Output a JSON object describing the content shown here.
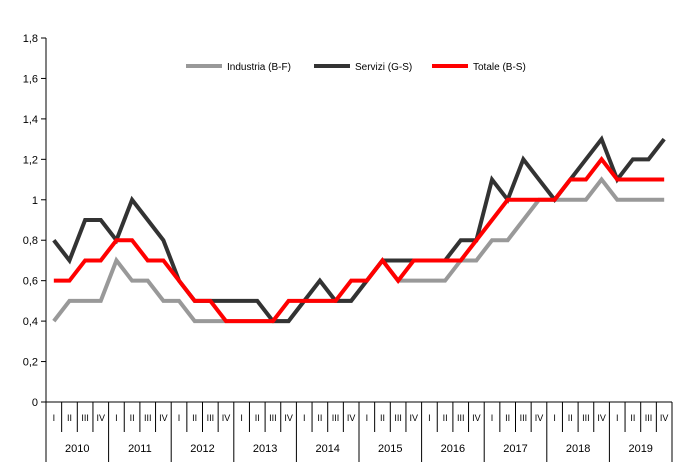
{
  "chart_data": {
    "type": "line",
    "title": "",
    "xlabel": "",
    "ylabel": "",
    "ylim": [
      0,
      1.8
    ],
    "yticks": [
      "0",
      "0,2",
      "0,4",
      "0,6",
      "0,8",
      "1",
      "1,2",
      "1,4",
      "1,6",
      "1,8"
    ],
    "ytick_values": [
      0,
      0.2,
      0.4,
      0.6,
      0.8,
      1.0,
      1.2,
      1.4,
      1.6,
      1.8
    ],
    "grid": false,
    "legend_position": "top-center",
    "quarter_labels": [
      "I",
      "II",
      "III",
      "IV"
    ],
    "years": [
      "2010",
      "2011",
      "2012",
      "2013",
      "2014",
      "2015",
      "2016",
      "2017",
      "2018",
      "2019"
    ],
    "series": [
      {
        "name": "Industria (B-F)",
        "color": "#999999",
        "values": [
          0.4,
          0.5,
          0.5,
          0.5,
          0.7,
          0.6,
          0.6,
          0.5,
          0.5,
          0.4,
          0.4,
          0.4,
          0.4,
          0.4,
          0.4,
          0.4,
          0.5,
          0.5,
          0.5,
          0.5,
          0.6,
          0.7,
          0.6,
          0.6,
          0.6,
          0.6,
          0.7,
          0.7,
          0.8,
          0.8,
          0.9,
          1.0,
          1.0,
          1.0,
          1.0,
          1.1,
          1.0,
          1.0,
          1.0,
          1.0
        ]
      },
      {
        "name": "Servizi (G-S)",
        "color": "#333333",
        "values": [
          0.8,
          0.7,
          0.9,
          0.9,
          0.8,
          1.0,
          0.9,
          0.8,
          0.6,
          0.5,
          0.5,
          0.5,
          0.5,
          0.5,
          0.4,
          0.4,
          0.5,
          0.6,
          0.5,
          0.5,
          0.6,
          0.7,
          0.7,
          0.7,
          0.7,
          0.7,
          0.8,
          0.8,
          1.1,
          1.0,
          1.2,
          1.1,
          1.0,
          1.1,
          1.2,
          1.3,
          1.1,
          1.2,
          1.2,
          1.3
        ]
      },
      {
        "name": "Totale (B-S)",
        "color": "#ff0000",
        "values": [
          0.6,
          0.6,
          0.7,
          0.7,
          0.8,
          0.8,
          0.7,
          0.7,
          0.6,
          0.5,
          0.5,
          0.4,
          0.4,
          0.4,
          0.4,
          0.5,
          0.5,
          0.5,
          0.5,
          0.6,
          0.6,
          0.7,
          0.6,
          0.7,
          0.7,
          0.7,
          0.7,
          0.8,
          0.9,
          1.0,
          1.0,
          1.0,
          1.0,
          1.1,
          1.1,
          1.2,
          1.1,
          1.1,
          1.1,
          1.1
        ]
      }
    ]
  }
}
